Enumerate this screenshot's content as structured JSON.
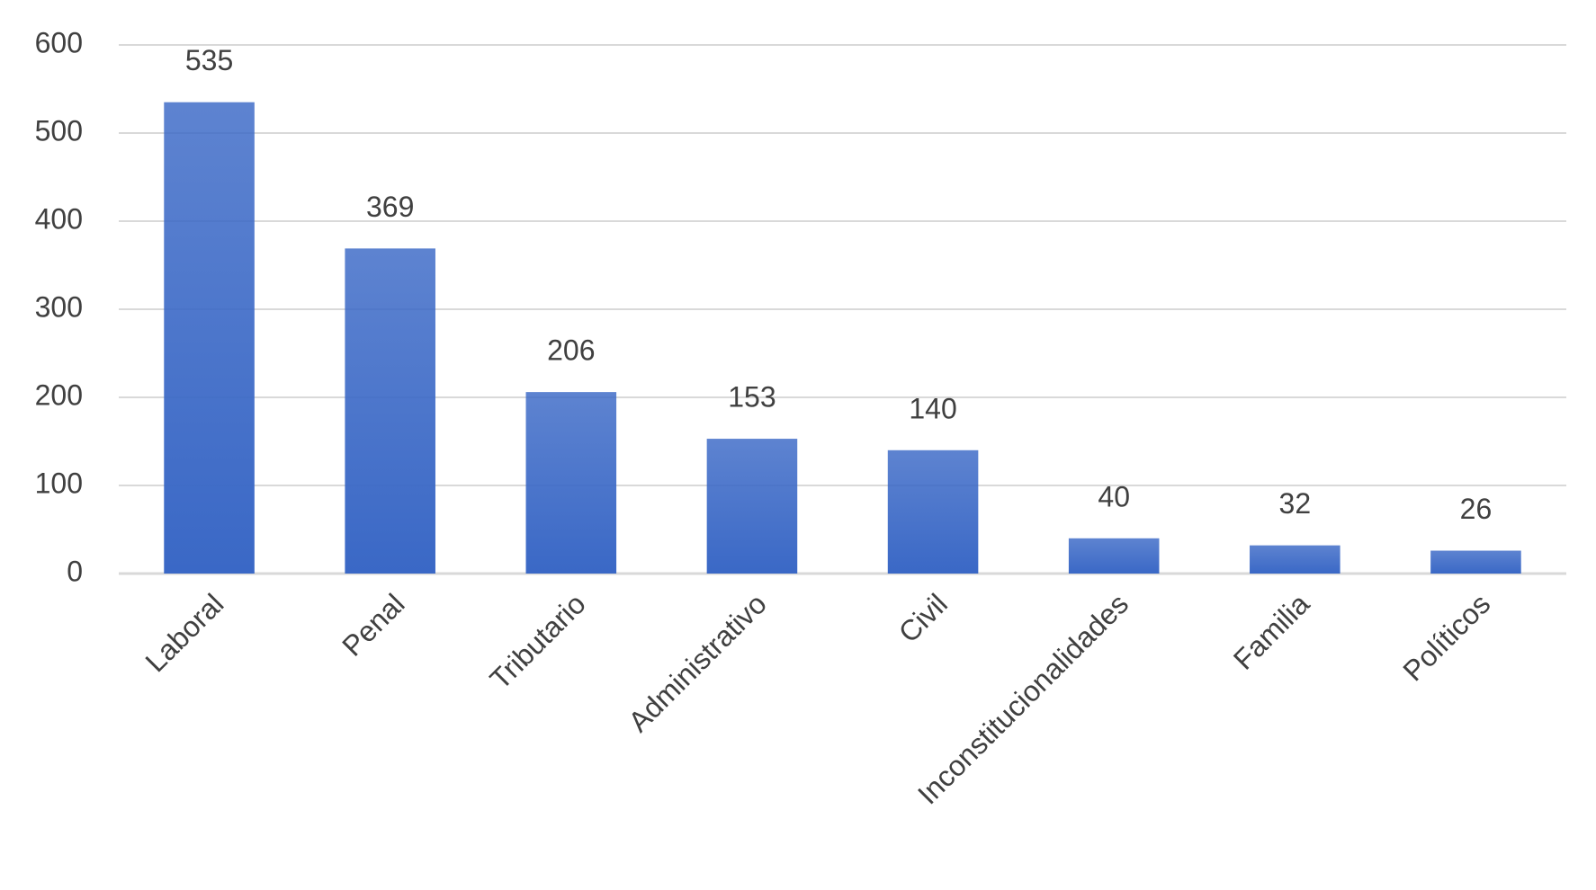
{
  "chart_data": {
    "type": "bar",
    "categories": [
      "Laboral",
      "Penal",
      "Tributario",
      "Administrativo",
      "Civil",
      "Inconstitucionalidades",
      "Familia",
      "Políticos"
    ],
    "values": [
      535,
      369,
      206,
      153,
      140,
      40,
      32,
      26
    ],
    "color": "#3a68c6",
    "ylim": [
      0,
      600
    ],
    "yticks": [
      0,
      100,
      200,
      300,
      400,
      500,
      600
    ],
    "grid": true
  }
}
